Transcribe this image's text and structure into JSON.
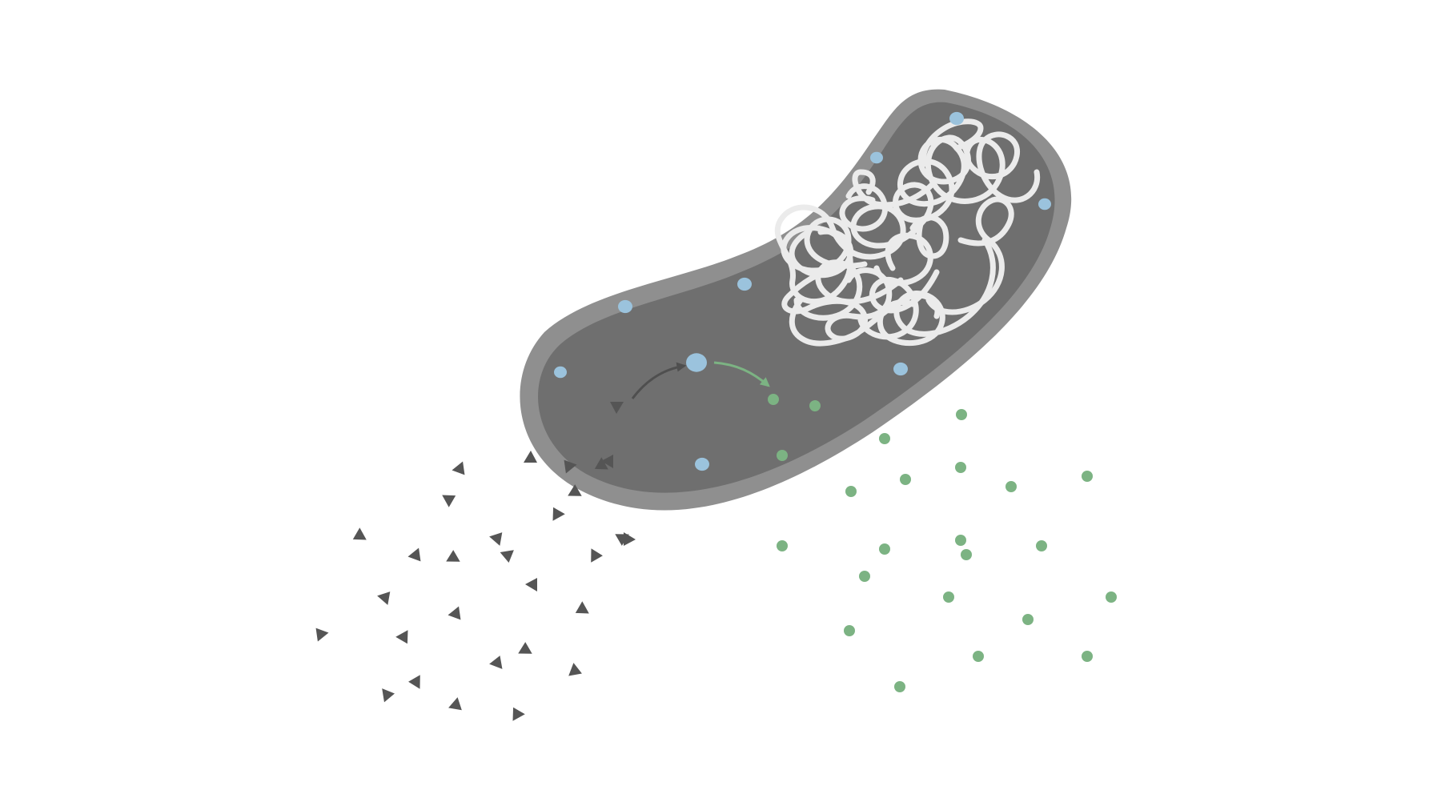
{
  "colors": {
    "background": "#ffffff",
    "cell_wall": "#8f8f8f",
    "cytoplasm": "#6f6f6f",
    "dna": "#ebebeb",
    "enzyme": "#9bc3dd",
    "product": "#7cb383",
    "substrate": "#555555",
    "arrow_in": "#4f4f4f",
    "arrow_out": "#7cb383"
  },
  "icons": {
    "substrate": "triangle-icon",
    "enzyme": "blue-blob-icon",
    "product": "green-dot-icon",
    "dna": "tangled-dna-icon"
  },
  "counts": {
    "enzymes_inside": 10,
    "substrates_outside": 30,
    "products_outside": 23
  }
}
